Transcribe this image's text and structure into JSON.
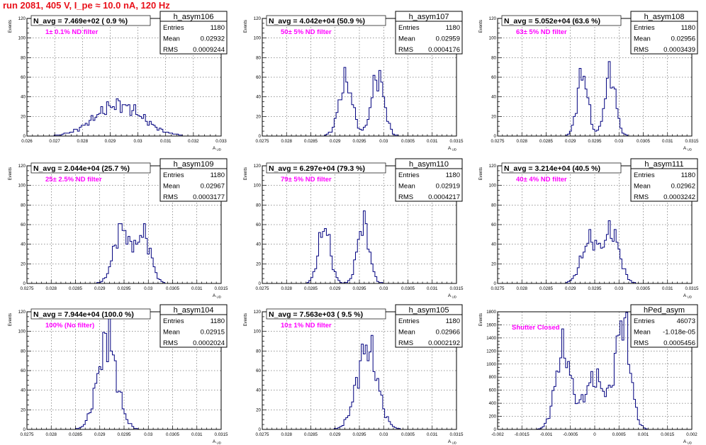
{
  "run_title": "run 2081,   405 V, I_pe ≈ 10.0 nA, 120 Hz",
  "colors": {
    "histogram": "#00007f",
    "annotation": "#ff00ff",
    "title": "#e8111b",
    "axis": "#000000"
  },
  "chart_data": [
    {
      "type": "histogram",
      "name": "h_asym106",
      "stats": {
        "entries_label": "Entries",
        "entries": "1180",
        "mean_label": "Mean",
        "mean": "0.02932",
        "rms_label": "RMS",
        "rms": "0.0009244"
      },
      "navg": "N_avg = 7.469e+02 ( 0.9 %)",
      "filter": "1± 0.1% ND filter",
      "ylabel": "Events",
      "xlabel": "A_UD",
      "xlim": [
        0.026,
        0.033
      ],
      "ylim": [
        0,
        120
      ],
      "grid": true,
      "xticks": [
        0.026,
        0.027,
        0.028,
        0.029,
        0.03,
        0.031,
        0.032,
        0.033
      ],
      "xtick_labels": [
        "0.026",
        "0.027",
        "0.028",
        "0.029",
        "0.03",
        "0.031",
        "0.032",
        "0.033"
      ],
      "yticks": [
        0,
        20,
        40,
        60,
        80,
        100,
        120
      ],
      "ytick_labels": [
        "0",
        "20",
        "40",
        "60",
        "80",
        "100",
        "120"
      ],
      "peaks": [
        {
          "mu": 0.0293,
          "sigma": 0.00085,
          "height": 32,
          "phase": 0.3
        }
      ],
      "baseline": 0.9
    },
    {
      "type": "histogram",
      "name": "h_asym107",
      "stats": {
        "entries_label": "Entries",
        "entries": "1180",
        "mean_label": "Mean",
        "mean": "0.02959",
        "rms_label": "RMS",
        "rms": "0.0004176"
      },
      "navg": "N_avg = 4.042e+04 (50.9 %)",
      "filter": "50± 5% ND filter",
      "ylabel": "Events",
      "xlabel": "A_UD",
      "xlim": [
        0.0275,
        0.0315
      ],
      "ylim": [
        0,
        120
      ],
      "grid": true,
      "xticks": [
        0.0275,
        0.028,
        0.0285,
        0.029,
        0.0295,
        0.03,
        0.0305,
        0.031,
        0.0315
      ],
      "xtick_labels": [
        "0.0275",
        "0.028",
        "0.0285",
        "0.029",
        "0.0295",
        "0.03",
        "0.0305",
        "0.031",
        "0.0315"
      ],
      "yticks": [
        0,
        20,
        40,
        60,
        80,
        100,
        120
      ],
      "ytick_labels": [
        "0",
        "20",
        "40",
        "60",
        "80",
        "100",
        "120"
      ],
      "peaks": [
        {
          "mu": 0.02922,
          "sigma": 0.00014,
          "height": 56,
          "phase": 1.1
        },
        {
          "mu": 0.02988,
          "sigma": 0.00013,
          "height": 62,
          "phase": 2.3
        }
      ],
      "baseline": 0.2
    },
    {
      "type": "histogram",
      "name": "h_asym108",
      "stats": {
        "entries_label": "Entries",
        "entries": "1180",
        "mean_label": "Mean",
        "mean": "0.02956",
        "rms_label": "RMS",
        "rms": "0.0003439"
      },
      "navg": "N_avg = 5.052e+04 (63.6 %)",
      "filter": "63± 5% ND filter",
      "ylabel": "Events",
      "xlabel": "A_UD",
      "xlim": [
        0.0275,
        0.0315
      ],
      "ylim": [
        0,
        120
      ],
      "grid": true,
      "xticks": [
        0.0275,
        0.028,
        0.0285,
        0.029,
        0.0295,
        0.03,
        0.0305,
        0.031,
        0.0315
      ],
      "xtick_labels": [
        "0.0275",
        "0.028",
        "0.0285",
        "0.029",
        "0.0295",
        "0.03",
        "0.0305",
        "0.031",
        "0.0315"
      ],
      "yticks": [
        0,
        20,
        40,
        60,
        80,
        100,
        120
      ],
      "ytick_labels": [
        "0",
        "20",
        "40",
        "60",
        "80",
        "100",
        "120"
      ],
      "peaks": [
        {
          "mu": 0.02925,
          "sigma": 0.00011,
          "height": 64,
          "phase": 0.7
        },
        {
          "mu": 0.02982,
          "sigma": 0.00011,
          "height": 64,
          "phase": 1.9
        }
      ],
      "baseline": 0.2
    },
    {
      "type": "histogram",
      "name": "h_asym109",
      "stats": {
        "entries_label": "Entries",
        "entries": "1180",
        "mean_label": "Mean",
        "mean": "0.02967",
        "rms_label": "RMS",
        "rms": "0.0003177"
      },
      "navg": "N_avg = 2.044e+04 (25.7 %)",
      "filter": "25± 2.5% ND filter",
      "ylabel": "Events",
      "xlabel": "A_UD",
      "xlim": [
        0.0275,
        0.0315
      ],
      "ylim": [
        0,
        120
      ],
      "grid": true,
      "xticks": [
        0.0275,
        0.028,
        0.0285,
        0.029,
        0.0295,
        0.03,
        0.0305,
        0.031,
        0.0315
      ],
      "xtick_labels": [
        "0.0275",
        "0.028",
        "0.0285",
        "0.029",
        "0.0295",
        "0.03",
        "0.0305",
        "0.031",
        "0.0315"
      ],
      "yticks": [
        0,
        20,
        40,
        60,
        80,
        100,
        120
      ],
      "ytick_labels": [
        "0",
        "20",
        "40",
        "60",
        "80",
        "100",
        "120"
      ],
      "peaks": [
        {
          "mu": 0.02945,
          "sigma": 0.00016,
          "height": 56,
          "phase": 2.9
        },
        {
          "mu": 0.0299,
          "sigma": 0.00015,
          "height": 50,
          "phase": 0.4
        }
      ],
      "baseline": 0.3
    },
    {
      "type": "histogram",
      "name": "h_asym110",
      "stats": {
        "entries_label": "Entries",
        "entries": "1180",
        "mean_label": "Mean",
        "mean": "0.02919",
        "rms_label": "RMS",
        "rms": "0.0004217"
      },
      "navg": "N_avg = 6.297e+04 (79.3 %)",
      "filter": "79± 5% ND filter",
      "ylabel": "Events",
      "xlabel": "A_UD",
      "xlim": [
        0.0275,
        0.0315
      ],
      "ylim": [
        0,
        120
      ],
      "grid": true,
      "xticks": [
        0.0275,
        0.028,
        0.0285,
        0.029,
        0.0295,
        0.03,
        0.0305,
        0.031,
        0.0315
      ],
      "xtick_labels": [
        "0.0275",
        "0.028",
        "0.0285",
        "0.029",
        "0.0295",
        "0.03",
        "0.0305",
        "0.031",
        "0.0315"
      ],
      "yticks": [
        0,
        20,
        40,
        60,
        80,
        100,
        120
      ],
      "ytick_labels": [
        "0",
        "20",
        "40",
        "60",
        "80",
        "100",
        "120"
      ],
      "peaks": [
        {
          "mu": 0.02878,
          "sigma": 0.00012,
          "height": 58,
          "phase": 1.5
        },
        {
          "mu": 0.02958,
          "sigma": 0.00012,
          "height": 62,
          "phase": 2.7
        }
      ],
      "baseline": 0.2
    },
    {
      "type": "histogram",
      "name": "h_asym111",
      "stats": {
        "entries_label": "Entries",
        "entries": "1180",
        "mean_label": "Mean",
        "mean": "0.02962",
        "rms_label": "RMS",
        "rms": "0.0003242"
      },
      "navg": "N_avg = 3.214e+04 (40.5 %)",
      "filter": "40± 4% ND filter",
      "ylabel": "Events",
      "xlabel": "A_UD",
      "xlim": [
        0.0275,
        0.0315
      ],
      "ylim": [
        0,
        120
      ],
      "grid": true,
      "xticks": [
        0.0275,
        0.028,
        0.0285,
        0.029,
        0.0295,
        0.03,
        0.0305,
        0.031,
        0.0315
      ],
      "xtick_labels": [
        "0.0275",
        "0.028",
        "0.0285",
        "0.029",
        "0.0295",
        "0.03",
        "0.0305",
        "0.031",
        "0.0315"
      ],
      "yticks": [
        0,
        20,
        40,
        60,
        80,
        100,
        120
      ],
      "ytick_labels": [
        "0",
        "20",
        "40",
        "60",
        "80",
        "100",
        "120"
      ],
      "peaks": [
        {
          "mu": 0.0294,
          "sigma": 0.00017,
          "height": 44,
          "phase": 0.9
        },
        {
          "mu": 0.02985,
          "sigma": 0.00016,
          "height": 52,
          "phase": 2.1
        }
      ],
      "baseline": 0.3
    },
    {
      "type": "histogram",
      "name": "h_asym104",
      "stats": {
        "entries_label": "Entries",
        "entries": "1180",
        "mean_label": "Mean",
        "mean": "0.02915",
        "rms_label": "RMS",
        "rms": "0.0002024"
      },
      "navg": "N_avg = 7.944e+04 (100.0 %)",
      "filter": "100% (No filter)",
      "ylabel": "Events",
      "xlabel": "A_UD",
      "xlim": [
        0.0275,
        0.0315
      ],
      "ylim": [
        0,
        120
      ],
      "grid": true,
      "xticks": [
        0.0275,
        0.028,
        0.0285,
        0.029,
        0.0295,
        0.03,
        0.0305,
        0.031,
        0.0315
      ],
      "xtick_labels": [
        "0.0275",
        "0.028",
        "0.0285",
        "0.029",
        "0.0295",
        "0.03",
        "0.0305",
        "0.031",
        "0.0315"
      ],
      "yticks": [
        0,
        20,
        40,
        60,
        80,
        100,
        120
      ],
      "ytick_labels": [
        "0",
        "20",
        "40",
        "60",
        "80",
        "100",
        "120"
      ],
      "peaks": [
        {
          "mu": 0.02915,
          "sigma": 0.0002,
          "height": 88,
          "phase": 3.3
        }
      ],
      "baseline": 0.2,
      "spike_x": 0.0292,
      "spike_y": 117
    },
    {
      "type": "histogram",
      "name": "h_asym105",
      "stats": {
        "entries_label": "Entries",
        "entries": "1180",
        "mean_label": "Mean",
        "mean": "0.02966",
        "rms_label": "RMS",
        "rms": "0.0002192"
      },
      "navg": "N_avg = 7.563e+03 ( 9.5 %)",
      "filter": "10± 1% ND filter",
      "ylabel": "Events",
      "xlabel": "A_UD",
      "xlim": [
        0.0275,
        0.0315
      ],
      "ylim": [
        0,
        120
      ],
      "grid": true,
      "xticks": [
        0.0275,
        0.028,
        0.0285,
        0.029,
        0.0295,
        0.03,
        0.0305,
        0.031,
        0.0315
      ],
      "xtick_labels": [
        "0.0275",
        "0.028",
        "0.0285",
        "0.029",
        "0.0295",
        "0.03",
        "0.0305",
        "0.031",
        "0.0315"
      ],
      "yticks": [
        0,
        20,
        40,
        60,
        80,
        100,
        120
      ],
      "ytick_labels": [
        "0",
        "20",
        "40",
        "60",
        "80",
        "100",
        "120"
      ],
      "peaks": [
        {
          "mu": 0.02966,
          "sigma": 0.00021,
          "height": 84,
          "phase": 1.2
        }
      ],
      "baseline": 0.2
    },
    {
      "type": "histogram",
      "name": "hPed_asym",
      "stats": {
        "entries_label": "Entries",
        "entries": "46073",
        "mean_label": "Mean",
        "mean": "-1.018e-05",
        "rms_label": "RMS",
        "rms": "0.0005456"
      },
      "navg": "",
      "filter": "Shutter Closed",
      "ylabel": "Events",
      "xlabel": "A_UD",
      "xlim": [
        -0.002,
        0.002
      ],
      "ylim": [
        0,
        1800
      ],
      "grid": true,
      "xticks": [
        -0.002,
        -0.0015,
        -0.001,
        -0.0005,
        0,
        0.0005,
        0.001,
        0.0015,
        0.002
      ],
      "xtick_labels": [
        "-0.002",
        "-0.0015",
        "-0.001",
        "-0.0005",
        "0",
        "0.0005",
        "0.001",
        "0.0015",
        "0.002"
      ],
      "yticks": [
        0,
        200,
        400,
        600,
        800,
        1000,
        1200,
        1400,
        1600,
        1800
      ],
      "ytick_labels": [
        "0",
        "200",
        "400",
        "600",
        "800",
        "1000",
        "1200",
        "1400",
        "1600",
        "1800"
      ],
      "peaks": [
        {
          "mu": -0.00065,
          "sigma": 0.00016,
          "height": 1200,
          "phase": 0.5
        },
        {
          "mu": 0.0,
          "sigma": 0.00022,
          "height": 780,
          "phase": 1.6
        },
        {
          "mu": 0.00058,
          "sigma": 0.00015,
          "height": 1650,
          "phase": 2.4
        }
      ],
      "baseline": 5
    }
  ]
}
